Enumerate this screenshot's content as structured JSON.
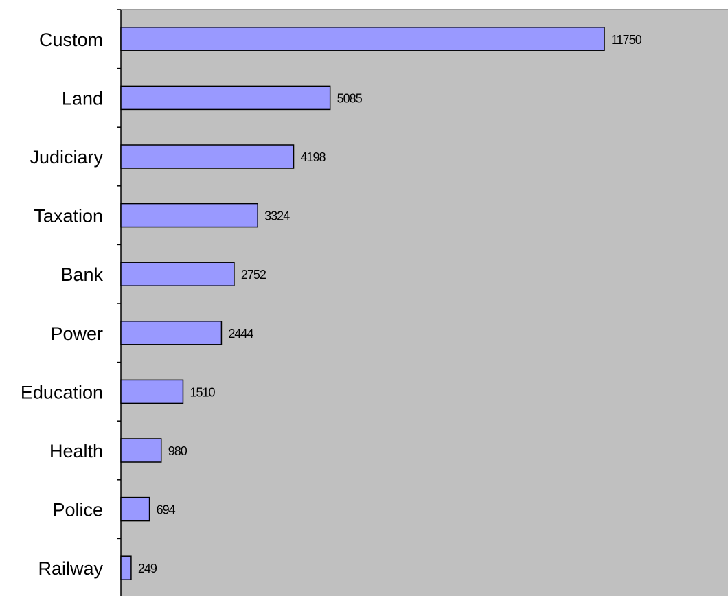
{
  "chart_data": {
    "type": "bar",
    "orientation": "horizontal",
    "title": "",
    "xlabel": "",
    "ylabel": "",
    "categories": [
      "Custom",
      "Land",
      "Judiciary",
      "Taxation",
      "Bank",
      "Power",
      "Education",
      "Health",
      "Police",
      "Railway"
    ],
    "values": [
      11750,
      5085,
      4198,
      3324,
      2752,
      2444,
      1510,
      980,
      694,
      249
    ],
    "data_labels": [
      "11750",
      "5085",
      "4198",
      "3324",
      "2752",
      "2444",
      "1510",
      "980",
      "694",
      "249"
    ],
    "xlim": [
      0,
      14700
    ],
    "grid": false,
    "legend": "none",
    "colors": {
      "bar_fill": "#9999ff",
      "bar_stroke": "#000000",
      "plot_background": "#c0c0c0",
      "plot_border": "#808080",
      "axis": "#000000"
    }
  }
}
